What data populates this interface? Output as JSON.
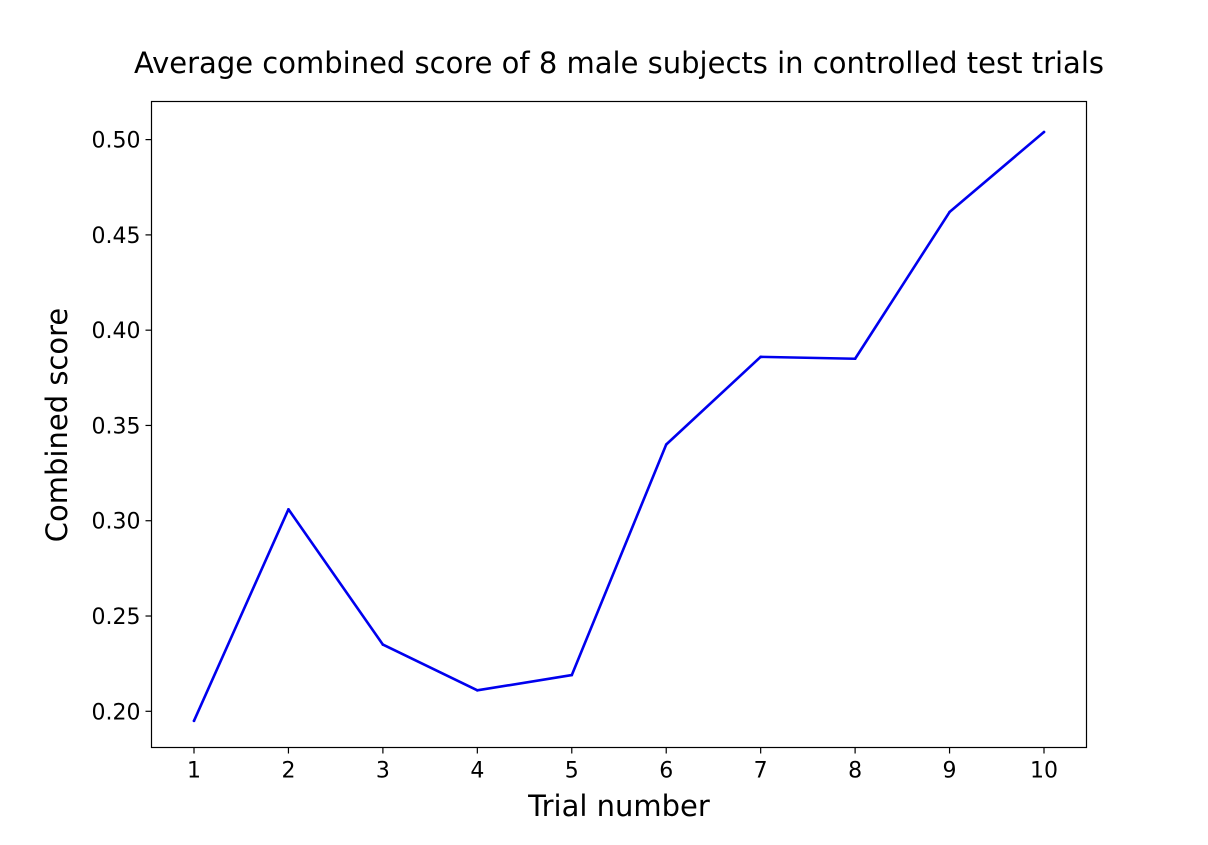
{
  "chart_data": {
    "type": "line",
    "title": "Average combined score of 8 male subjects in controlled test trials",
    "xlabel": "Trial number",
    "ylabel": "Combined score",
    "x": [
      1,
      2,
      3,
      4,
      5,
      6,
      7,
      8,
      9,
      10
    ],
    "xticks": [
      "1",
      "2",
      "3",
      "4",
      "5",
      "6",
      "7",
      "8",
      "9",
      "10"
    ],
    "yticks": [
      "0.20",
      "0.25",
      "0.30",
      "0.35",
      "0.40",
      "0.45",
      "0.50"
    ],
    "xlim": [
      0.55,
      10.45
    ],
    "ylim": [
      0.181,
      0.52
    ],
    "grid": false,
    "series": [
      {
        "color": "#0000ee",
        "values": [
          0.195,
          0.306,
          0.235,
          0.211,
          0.219,
          0.34,
          0.386,
          0.385,
          0.462,
          0.504
        ]
      }
    ]
  }
}
